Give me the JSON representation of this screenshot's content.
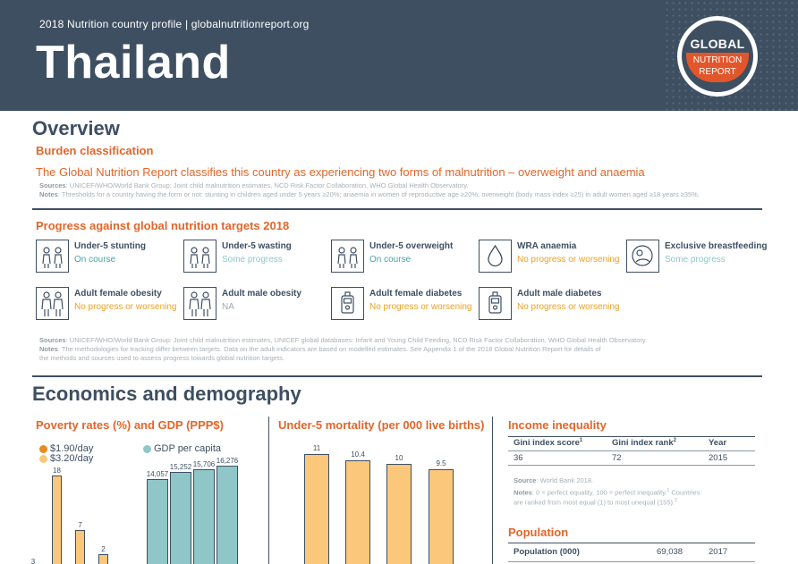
{
  "header": {
    "subtitle": "2018 Nutrition country profile  |  globalnutritionreport.org",
    "country": "Thailand",
    "logo": {
      "line1": "GLOBAL",
      "line2": "NUTRITION",
      "line3": "REPORT"
    }
  },
  "overview": {
    "title": "Overview",
    "burden_heading": "Burden classification",
    "burden_text": "The Global Nutrition Report classifies this country as experiencing two forms of malnutrition – overweight and anaemia",
    "burden_sources_label": "Sources",
    "burden_sources": ": UNICEF/WHO/World Bank Group: Joint child malnutrition estimates, NCD Risk Factor Collaboration, WHO Global Health Observatory.",
    "burden_notes_label": "Notes",
    "burden_notes": ": Thresholds for a country having the form or not: stunting in children aged under 5 years ≥20%; anaemia in women of reproductive age ≥20%; overweight (body mass index ≥25) in adult women aged ≥18 years ≥35%.",
    "progress_heading": "Progress against global nutrition targets 2018",
    "targets": [
      {
        "label": "Under-5 stunting",
        "status": "On course",
        "cls": "on",
        "icon": "children-icon"
      },
      {
        "label": "Under-5 wasting",
        "status": "Some progress",
        "cls": "some",
        "icon": "children-icon"
      },
      {
        "label": "Under-5 overweight",
        "status": "On course",
        "cls": "on",
        "icon": "children-icon"
      },
      {
        "label": "WRA anaemia",
        "status": "No progress or worsening",
        "cls": "no",
        "icon": "blood-drop-icon"
      },
      {
        "label": "Exclusive breastfeeding",
        "status": "Some progress",
        "cls": "some",
        "icon": "breastfeeding-icon"
      },
      {
        "label": "Adult female obesity",
        "status": "No progress or worsening",
        "cls": "no",
        "icon": "adults-icon"
      },
      {
        "label": "Adult male obesity",
        "status": "NA",
        "cls": "na",
        "icon": "adults-icon"
      },
      {
        "label": "Adult female diabetes",
        "status": "No progress or worsening",
        "cls": "no",
        "icon": "glucose-meter-icon"
      },
      {
        "label": "Adult male diabetes",
        "status": "No progress or worsening",
        "cls": "no",
        "icon": "glucose-meter-icon"
      }
    ],
    "progress_sources_label": "Sources",
    "progress_sources": ": UNICEF/WHO/World Bank Group: Joint child malnutrition estimates, UNICEF global databases: Infant and Young Child Feeding, NCD Risk Factor Collaboration, WHO Global Health Observatory.",
    "progress_notes_label": "Notes",
    "progress_notes_1": ": The methodologies for tracking differ between targets. Data on the adult indicators are based on modelled estimates. See Appendix 1 of the 2018 Global Nutrition Report for details of",
    "progress_notes_2": "the methods and sources used to assess progress towards global nutrition targets."
  },
  "economics": {
    "title": "Economics and demography",
    "poverty": {
      "heading": "Poverty rates (%) and GDP (PPP$)",
      "legend_190": "$1.90/day",
      "legend_320": "$3.20/day",
      "legend_gdp": "GDP per capita"
    },
    "mortality_heading": "Under-5 mortality (per 000 live births)",
    "income": {
      "heading": "Income inequality",
      "headers": [
        "Gini index score",
        "Gini index rank",
        "Year"
      ],
      "header_sup": [
        "1",
        "2",
        ""
      ],
      "values": [
        "36",
        "72",
        "2015"
      ],
      "source_label": "Source",
      "source": ": World Bank 2018.",
      "notes_label": "Notes",
      "notes_1": ": 0 = perfect equality, 100 = perfect inequality.",
      "notes_1_sup": "1",
      "notes_1b": " Countries",
      "notes_2": "are ranked from most equal (1) to most unequal (155).",
      "notes_2_sup": "2"
    },
    "population": {
      "heading": "Population",
      "label": "Population (000)",
      "value": "69,038",
      "year": "2017"
    }
  },
  "chart_data": [
    {
      "type": "bar",
      "title": "Poverty rates (%) and GDP (PPP$)",
      "series": [
        {
          "name": "$3.20/day",
          "values": [
            18,
            7,
            2
          ]
        },
        {
          "name": "$1.90/day",
          "values": [
            3
          ]
        },
        {
          "name": "GDP per capita",
          "values": [
            14057,
            15252,
            15706,
            16276
          ]
        }
      ],
      "labels_poverty": [
        "3",
        "18",
        "7",
        "2"
      ],
      "labels_gdp": [
        "14,057",
        "15,252",
        "15,706",
        "16,276"
      ],
      "colors": {
        "usd190": "#e98b1e",
        "usd320": "#fbc77b",
        "gdp": "#8fc7c9"
      }
    },
    {
      "type": "bar",
      "title": "Under-5 mortality (per 000 live births)",
      "values": [
        11,
        10.4,
        10,
        9.5
      ],
      "labels": [
        "11",
        "10.4",
        "10",
        "9.5"
      ],
      "colors": {
        "bar": "#fbc77b"
      }
    }
  ]
}
